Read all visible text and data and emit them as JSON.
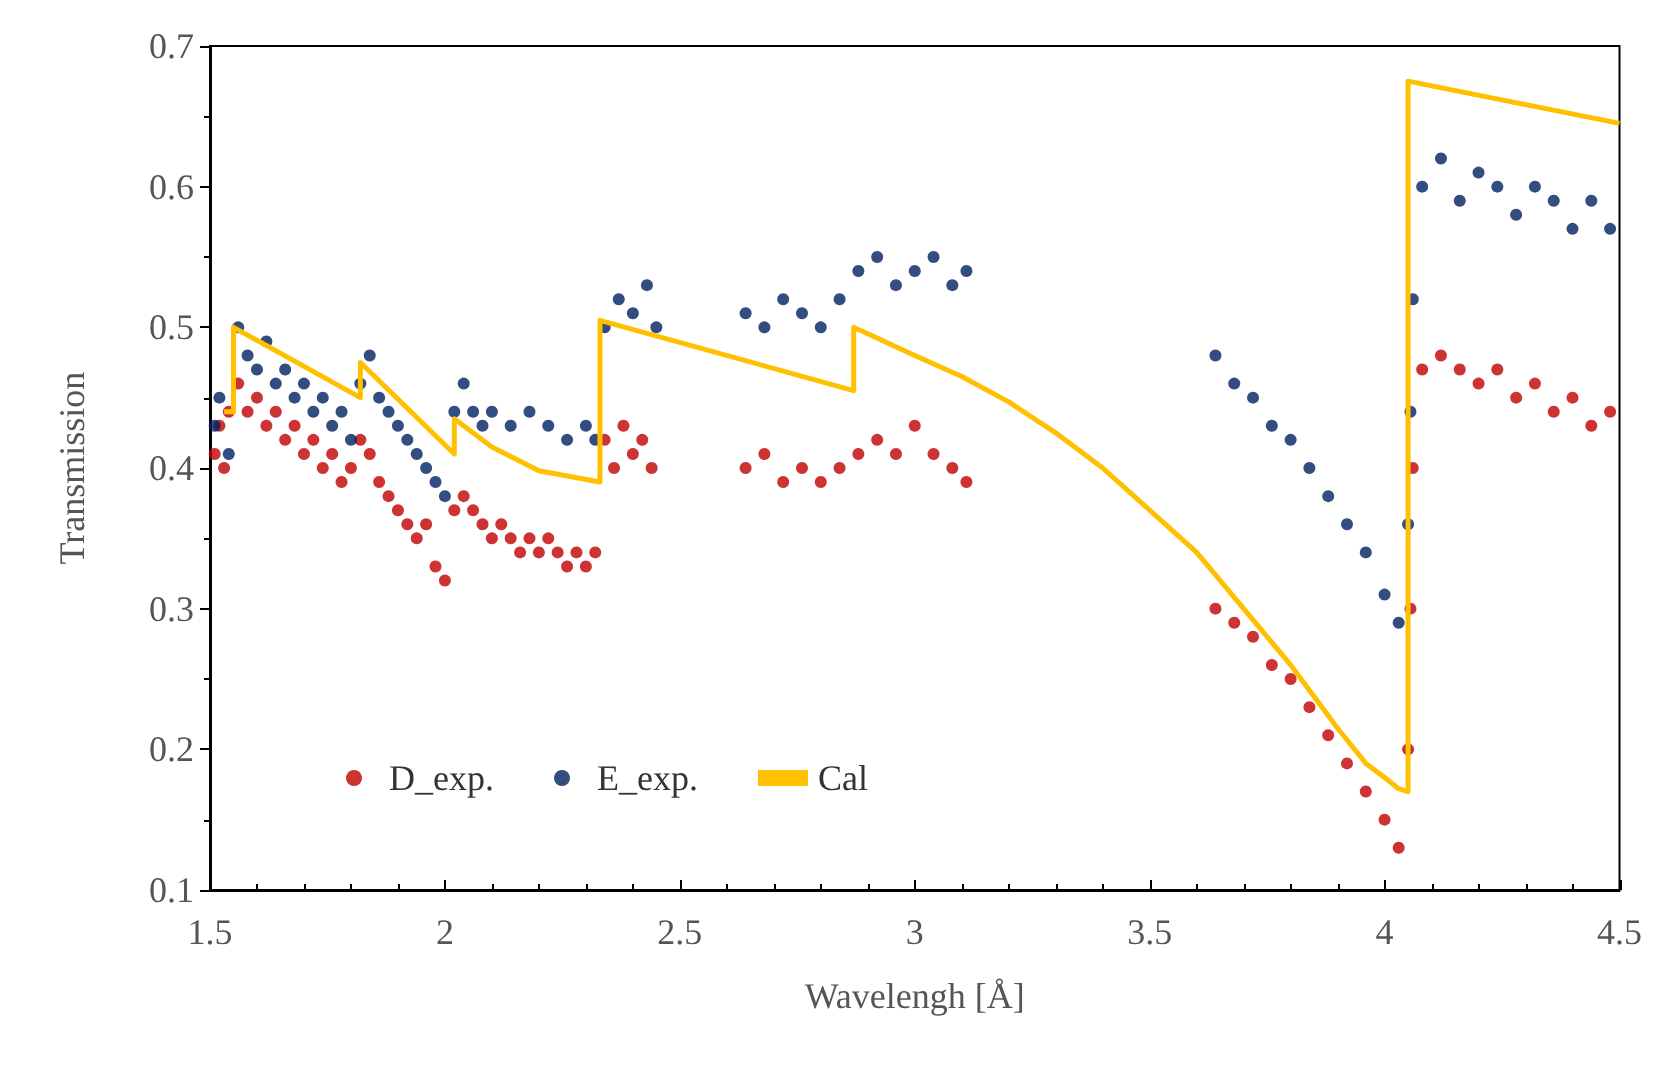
{
  "chart_data": {
    "type": "scatter",
    "xlabel": "Wavelengh [Å]",
    "ylabel": "Transmission",
    "xlim": [
      1.5,
      4.5
    ],
    "xticks": [
      1.5,
      2,
      2.5,
      3,
      3.5,
      4,
      4.5
    ],
    "ylim": [
      0.1,
      0.7
    ],
    "yticks": [
      0.1,
      0.2,
      0.3,
      0.4,
      0.5,
      0.6,
      0.7
    ],
    "grid": false,
    "legend": "bottom left",
    "marker": "circle",
    "series": [
      {
        "name": "D_exp.",
        "color": "#c00000",
        "x": [
          1.51,
          1.52,
          1.53,
          1.54,
          1.56,
          1.58,
          1.6,
          1.62,
          1.64,
          1.66,
          1.68,
          1.7,
          1.72,
          1.74,
          1.76,
          1.78,
          1.8,
          1.82,
          1.84,
          1.86,
          1.88,
          1.9,
          1.92,
          1.94,
          1.96,
          1.98,
          2.0,
          2.02,
          2.04,
          2.06,
          2.08,
          2.1,
          2.12,
          2.14,
          2.16,
          2.18,
          2.2,
          2.22,
          2.24,
          2.26,
          2.28,
          2.3,
          2.32,
          2.34,
          2.36,
          2.38,
          2.4,
          2.42,
          2.44,
          2.64,
          2.68,
          2.72,
          2.76,
          2.8,
          2.84,
          2.88,
          2.92,
          2.96,
          3.0,
          3.04,
          3.08,
          3.11,
          3.64,
          3.68,
          3.72,
          3.76,
          3.8,
          3.84,
          3.88,
          3.92,
          3.96,
          4.0,
          4.03,
          4.05,
          4.055,
          4.06,
          4.08,
          4.12,
          4.16,
          4.2,
          4.24,
          4.28,
          4.32,
          4.36,
          4.4,
          4.44,
          4.48
        ],
        "values": [
          0.41,
          0.43,
          0.4,
          0.44,
          0.46,
          0.44,
          0.45,
          0.43,
          0.44,
          0.42,
          0.43,
          0.41,
          0.42,
          0.4,
          0.41,
          0.39,
          0.4,
          0.42,
          0.41,
          0.39,
          0.38,
          0.37,
          0.36,
          0.35,
          0.36,
          0.33,
          0.32,
          0.37,
          0.38,
          0.37,
          0.36,
          0.35,
          0.36,
          0.35,
          0.34,
          0.35,
          0.34,
          0.35,
          0.34,
          0.33,
          0.34,
          0.33,
          0.34,
          0.42,
          0.4,
          0.43,
          0.41,
          0.42,
          0.4,
          0.4,
          0.41,
          0.39,
          0.4,
          0.39,
          0.4,
          0.41,
          0.42,
          0.41,
          0.43,
          0.41,
          0.4,
          0.39,
          0.3,
          0.29,
          0.28,
          0.26,
          0.25,
          0.23,
          0.21,
          0.19,
          0.17,
          0.15,
          0.13,
          0.2,
          0.3,
          0.4,
          0.47,
          0.48,
          0.47,
          0.46,
          0.47,
          0.45,
          0.46,
          0.44,
          0.45,
          0.43,
          0.44
        ]
      },
      {
        "name": "E_exp.",
        "color": "#002060",
        "x": [
          1.51,
          1.52,
          1.54,
          1.56,
          1.58,
          1.6,
          1.62,
          1.64,
          1.66,
          1.68,
          1.7,
          1.72,
          1.74,
          1.76,
          1.78,
          1.8,
          1.82,
          1.84,
          1.86,
          1.88,
          1.9,
          1.92,
          1.94,
          1.96,
          1.98,
          2.0,
          2.02,
          2.04,
          2.06,
          2.08,
          2.1,
          2.14,
          2.18,
          2.22,
          2.26,
          2.3,
          2.32,
          2.34,
          2.37,
          2.4,
          2.43,
          2.45,
          2.64,
          2.68,
          2.72,
          2.76,
          2.8,
          2.84,
          2.88,
          2.92,
          2.96,
          3.0,
          3.04,
          3.08,
          3.11,
          3.64,
          3.68,
          3.72,
          3.76,
          3.8,
          3.84,
          3.88,
          3.92,
          3.96,
          4.0,
          4.03,
          4.05,
          4.055,
          4.06,
          4.08,
          4.12,
          4.16,
          4.2,
          4.24,
          4.28,
          4.32,
          4.36,
          4.4,
          4.44,
          4.48
        ],
        "values": [
          0.43,
          0.45,
          0.41,
          0.5,
          0.48,
          0.47,
          0.49,
          0.46,
          0.47,
          0.45,
          0.46,
          0.44,
          0.45,
          0.43,
          0.44,
          0.42,
          0.46,
          0.48,
          0.45,
          0.44,
          0.43,
          0.42,
          0.41,
          0.4,
          0.39,
          0.38,
          0.44,
          0.46,
          0.44,
          0.43,
          0.44,
          0.43,
          0.44,
          0.43,
          0.42,
          0.43,
          0.42,
          0.5,
          0.52,
          0.51,
          0.53,
          0.5,
          0.51,
          0.5,
          0.52,
          0.51,
          0.5,
          0.52,
          0.54,
          0.55,
          0.53,
          0.54,
          0.55,
          0.53,
          0.54,
          0.48,
          0.46,
          0.45,
          0.43,
          0.42,
          0.4,
          0.38,
          0.36,
          0.34,
          0.31,
          0.29,
          0.36,
          0.44,
          0.52,
          0.6,
          0.62,
          0.59,
          0.61,
          0.6,
          0.58,
          0.6,
          0.59,
          0.57,
          0.59,
          0.57
        ]
      },
      {
        "name": "Cal",
        "color": "#ffc000",
        "type": "line",
        "marker": "none",
        "x": [
          1.53,
          1.55,
          1.55,
          1.82,
          1.82,
          2.02,
          2.02,
          2.1,
          2.2,
          2.33,
          2.33,
          2.87,
          2.87,
          3.0,
          3.1,
          3.2,
          3.3,
          3.4,
          3.5,
          3.6,
          3.7,
          3.8,
          3.9,
          3.96,
          4.0,
          4.03,
          4.05,
          4.05,
          4.5
        ],
        "values": [
          0.44,
          0.44,
          0.5,
          0.45,
          0.475,
          0.41,
          0.435,
          0.415,
          0.398,
          0.39,
          0.505,
          0.455,
          0.5,
          0.48,
          0.465,
          0.447,
          0.425,
          0.4,
          0.37,
          0.34,
          0.3,
          0.26,
          0.215,
          0.19,
          0.18,
          0.172,
          0.17,
          0.675,
          0.645
        ]
      }
    ]
  }
}
